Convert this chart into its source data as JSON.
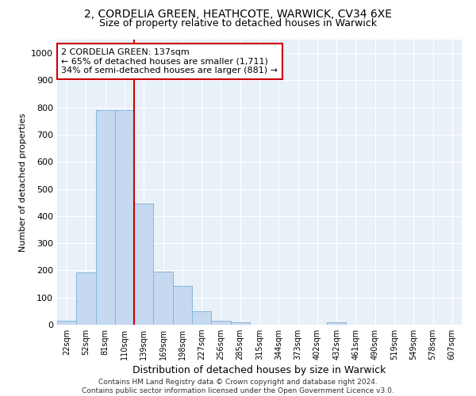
{
  "title_line1": "2, CORDELIA GREEN, HEATHCOTE, WARWICK, CV34 6XE",
  "title_line2": "Size of property relative to detached houses in Warwick",
  "xlabel": "Distribution of detached houses by size in Warwick",
  "ylabel": "Number of detached properties",
  "bar_color": "#c5d9f0",
  "bar_edge_color": "#7bafd4",
  "bin_labels": [
    "22sqm",
    "52sqm",
    "81sqm",
    "110sqm",
    "139sqm",
    "169sqm",
    "198sqm",
    "227sqm",
    "256sqm",
    "285sqm",
    "315sqm",
    "344sqm",
    "373sqm",
    "402sqm",
    "432sqm",
    "461sqm",
    "490sqm",
    "519sqm",
    "549sqm",
    "578sqm",
    "607sqm"
  ],
  "bar_values": [
    15,
    193,
    790,
    790,
    447,
    194,
    143,
    50,
    15,
    10,
    0,
    0,
    0,
    0,
    10,
    0,
    0,
    0,
    0,
    0,
    0
  ],
  "vline_x": 3.5,
  "ylim": [
    0,
    1050
  ],
  "yticks": [
    0,
    100,
    200,
    300,
    400,
    500,
    600,
    700,
    800,
    900,
    1000
  ],
  "annotation_text": "2 CORDELIA GREEN: 137sqm\n← 65% of detached houses are smaller (1,711)\n34% of semi-detached houses are larger (881) →",
  "vline_color": "#cc0000",
  "annotation_box_facecolor": "#ffffff",
  "annotation_box_edgecolor": "#cc0000",
  "background_color": "#e8f0f8",
  "grid_color": "#ffffff",
  "footer_text": "Contains HM Land Registry data © Crown copyright and database right 2024.\nContains public sector information licensed under the Open Government Licence v3.0.",
  "title_fontsize": 10,
  "subtitle_fontsize": 9,
  "xlabel_fontsize": 9,
  "ylabel_fontsize": 8,
  "annotation_fontsize": 8,
  "tick_fontsize": 7,
  "footer_fontsize": 6.5
}
